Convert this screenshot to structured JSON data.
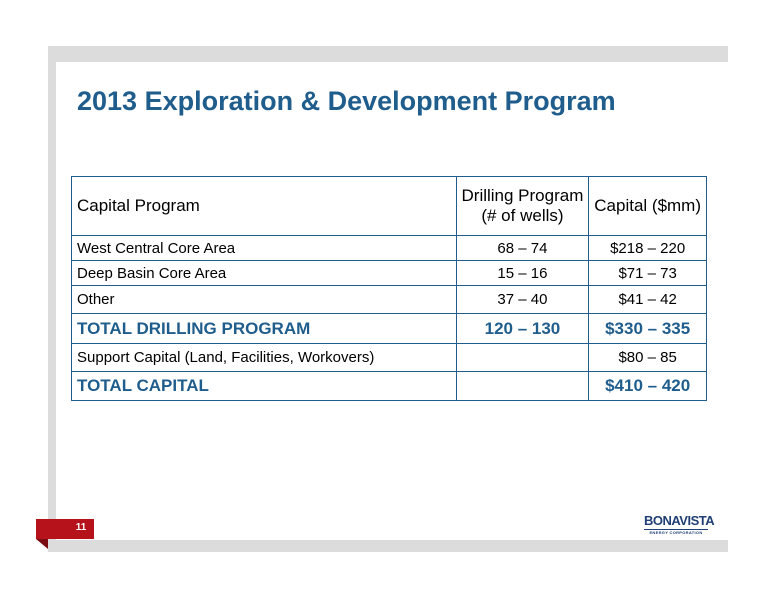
{
  "slide": {
    "title": "2013 Exploration & Development Program",
    "page_number": "11"
  },
  "table": {
    "headers": {
      "col1": "Capital Program",
      "col2": "Drilling Program (# of wells)",
      "col3": "Capital ($mm)"
    },
    "rows": [
      {
        "label": "West Central Core Area",
        "wells": "68 – 74",
        "capital": "$218 – 220"
      },
      {
        "label": "Deep Basin Core Area",
        "wells": "15 – 16",
        "capital": "$71 – 73"
      },
      {
        "label": "Other",
        "wells": "37 – 40",
        "capital": "$41 – 42"
      }
    ],
    "total_drilling": {
      "label": "TOTAL DRILLING PROGRAM",
      "wells": "120 – 130",
      "capital": "$330 – 335"
    },
    "support": {
      "label": "Support Capital (Land, Facilities, Workovers)",
      "wells": "",
      "capital": "$80 – 85"
    },
    "total_capital": {
      "label": "TOTAL CAPITAL",
      "wells": "",
      "capital": "$410 – 420"
    }
  },
  "logo": {
    "name": "BONAVISTA",
    "tagline": "ENERGY CORPORATION"
  },
  "colors": {
    "title": "#1f5d8c",
    "page_tab": "#b5121b",
    "logo": "#1f3f75"
  }
}
